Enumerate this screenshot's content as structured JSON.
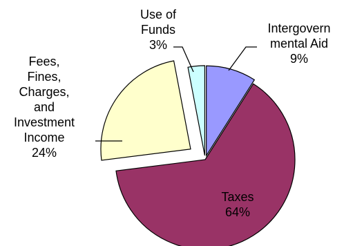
{
  "chart_data": {
    "type": "pie",
    "title": "",
    "exploded": true,
    "slices": [
      {
        "label": "Intergovern\nmental Aid",
        "pct_label": "9%",
        "value": 9,
        "color": "#9999ff"
      },
      {
        "label": "Taxes",
        "pct_label": "64%",
        "value": 64,
        "color": "#993366"
      },
      {
        "label": "Fees,\nFines,\nCharges,\nand\nInvestment\nIncome",
        "pct_label": "24%",
        "value": 24,
        "color": "#ffffcc"
      },
      {
        "label": "Use of\nFunds",
        "pct_label": "3%",
        "value": 3,
        "color": "#ccffff"
      }
    ],
    "legend": "none",
    "label_position": "outside-with-leaders (Taxes inside)"
  }
}
